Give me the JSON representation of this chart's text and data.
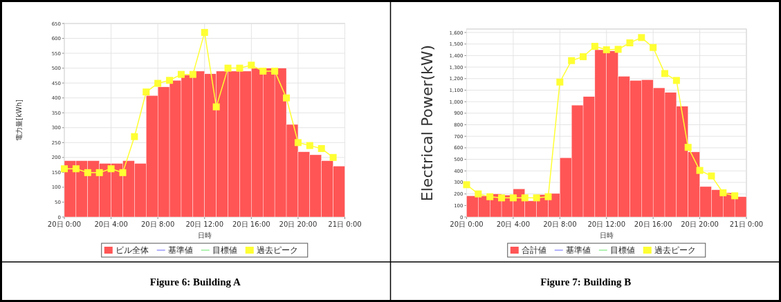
{
  "chart_data": [
    {
      "type": "bar",
      "title": "Figure 6: Building A",
      "xlabel": "日時",
      "ylabel": "電力量[kWh]",
      "categories": [
        "20日 0:00",
        null,
        null,
        null,
        "20日 4:00",
        null,
        null,
        null,
        "20日 8:00",
        null,
        null,
        null,
        "20日 12:00",
        null,
        null,
        null,
        "20日 16:00",
        null,
        null,
        null,
        "20日 20:00",
        null,
        null,
        null,
        "21日 0:00"
      ],
      "ylim": [
        0,
        650
      ],
      "yticks": [
        0,
        50,
        100,
        150,
        200,
        250,
        300,
        350,
        400,
        450,
        500,
        550,
        600,
        650
      ],
      "grid": true,
      "legend": "bottom",
      "marker": "square",
      "line_style": "solid",
      "series": [
        {
          "name": "ビル全体",
          "type": "bar",
          "color": "#ff5555",
          "values": [
            189,
            189,
            189,
            180,
            180,
            189,
            180,
            408,
            437,
            459,
            477,
            490,
            481,
            490,
            490,
            490,
            500,
            500,
            500,
            311,
            219,
            209,
            189,
            171,
            null
          ]
        },
        {
          "name": "基準値",
          "type": "line",
          "color": "#9999ff",
          "values": [
            null,
            null,
            null,
            null,
            null,
            null,
            null,
            null,
            null,
            null,
            null,
            null,
            null,
            null,
            null,
            null,
            null,
            null,
            null,
            null,
            null,
            null,
            null,
            null,
            null
          ]
        },
        {
          "name": "目標値",
          "type": "line",
          "color": "#99ee99",
          "values": [
            null,
            null,
            null,
            null,
            null,
            null,
            null,
            null,
            null,
            null,
            null,
            null,
            null,
            null,
            null,
            null,
            null,
            null,
            null,
            null,
            null,
            null,
            null,
            null,
            null
          ]
        },
        {
          "name": "過去ピーク",
          "type": "line",
          "color": "#ffff33",
          "values": [
            162,
            162,
            149,
            149,
            162,
            149,
            270,
            420,
            449,
            459,
            479,
            479,
            620,
            370,
            500,
            500,
            510,
            490,
            490,
            400,
            250,
            240,
            230,
            200,
            null
          ]
        }
      ]
    },
    {
      "type": "bar",
      "title": "Figure 7: Building B",
      "xlabel": "日時",
      "ylabel": "Electrical Power(kW)",
      "categories": [
        "20日 0:00",
        null,
        null,
        null,
        "20日 4:00",
        null,
        null,
        null,
        "20日 8:00",
        null,
        null,
        null,
        "20日 12:00",
        null,
        null,
        null,
        "20日 16:00",
        null,
        null,
        null,
        "20日 20:00",
        null,
        null,
        null,
        "21日 0:00"
      ],
      "ylim": [
        0,
        1630
      ],
      "yticks": [
        0,
        100,
        200,
        300,
        400,
        500,
        600,
        700,
        800,
        900,
        {
          "value": 1000,
          "label": "1,000"
        },
        {
          "value": 1100,
          "label": "1,100"
        },
        {
          "value": 1200,
          "label": "1,200"
        },
        {
          "value": 1300,
          "label": "1,300"
        },
        {
          "value": 1400,
          "label": "1,400"
        },
        {
          "value": 1500,
          "label": "1,500"
        },
        {
          "value": 1600,
          "label": "1,600"
        }
      ],
      "grid": true,
      "legend": "bottom",
      "marker": "square",
      "line_style": "solid",
      "series": [
        {
          "name": "合計値",
          "type": "bar",
          "color": "#ff5555",
          "values": [
            184,
            184,
            200,
            190,
            244,
            140,
            194,
            204,
            514,
            970,
            1044,
            1450,
            1440,
            1220,
            1184,
            1190,
            1120,
            1080,
            960,
            564,
            264,
            236,
            210,
            176,
            null
          ]
        },
        {
          "name": "基準値",
          "type": "line",
          "color": "#9999ff",
          "values": [
            null,
            null,
            null,
            null,
            null,
            null,
            null,
            null,
            null,
            null,
            null,
            null,
            null,
            null,
            null,
            null,
            null,
            null,
            null,
            null,
            null,
            null,
            null,
            null,
            null
          ]
        },
        {
          "name": "目標値",
          "type": "line",
          "color": "#99ee99",
          "values": [
            null,
            null,
            null,
            null,
            null,
            null,
            null,
            null,
            null,
            null,
            null,
            null,
            null,
            null,
            null,
            null,
            null,
            null,
            null,
            null,
            null,
            null,
            null,
            null,
            null
          ]
        },
        {
          "name": "過去ピーク",
          "type": "line",
          "color": "#ffff33",
          "values": [
            280,
            200,
            176,
            166,
            166,
            166,
            166,
            176,
            1170,
            1356,
            1390,
            1480,
            1450,
            1454,
            1510,
            1556,
            1470,
            1244,
            1184,
            604,
            404,
            356,
            210,
            184,
            null
          ]
        }
      ]
    }
  ]
}
